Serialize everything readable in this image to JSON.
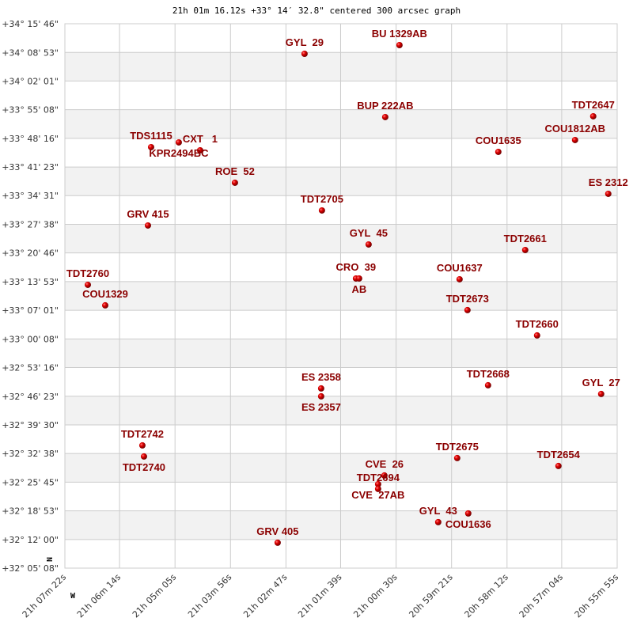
{
  "chart_data": {
    "type": "scatter",
    "title": "21h 01m 16.12s +33° 14′ 32.8\" centered 300 arcsec graph",
    "x_unit": "right ascension (hours)",
    "y_unit": "declination (degrees)",
    "xlim": [
      21.122778,
      20.931944
    ],
    "ylim": [
      32.085556,
      34.262778
    ],
    "x_ticks": [
      {
        "value": 21.122778,
        "label": "21h 07m 22s"
      },
      {
        "value": 21.103889,
        "label": "21h 06m 14s"
      },
      {
        "value": 21.084722,
        "label": "21h 05m 05s"
      },
      {
        "value": 21.065556,
        "label": "21h 03m 56s"
      },
      {
        "value": 21.046389,
        "label": "21h 02m 47s"
      },
      {
        "value": 21.0275,
        "label": "21h 01m 39s"
      },
      {
        "value": 21.008333,
        "label": "21h 00m 30s"
      },
      {
        "value": 20.989167,
        "label": "20h 59m 21s"
      },
      {
        "value": 20.97,
        "label": "20h 58m 12s"
      },
      {
        "value": 20.951111,
        "label": "20h 57m 04s"
      },
      {
        "value": 20.931944,
        "label": "20h 55m 55s"
      }
    ],
    "y_ticks": [
      {
        "value": 34.262778,
        "label": "+34° 15' 46\""
      },
      {
        "value": 34.148056,
        "label": "+34° 08' 53\""
      },
      {
        "value": 34.033611,
        "label": "+34° 02' 01\""
      },
      {
        "value": 33.918889,
        "label": "+33° 55' 08\""
      },
      {
        "value": 33.804444,
        "label": "+33° 48' 16\""
      },
      {
        "value": 33.689722,
        "label": "+33° 41' 23\""
      },
      {
        "value": 33.575278,
        "label": "+33° 34' 31\""
      },
      {
        "value": 33.460556,
        "label": "+33° 27' 38\""
      },
      {
        "value": 33.346111,
        "label": "+33° 20' 46\""
      },
      {
        "value": 33.231389,
        "label": "+33° 13' 53\""
      },
      {
        "value": 33.116944,
        "label": "+33° 07' 01\""
      },
      {
        "value": 33.002222,
        "label": "+33° 00' 08\""
      },
      {
        "value": 32.887778,
        "label": "+32° 53' 16\""
      },
      {
        "value": 32.773056,
        "label": "+32° 46' 23\""
      },
      {
        "value": 32.658333,
        "label": "+32° 39' 30\""
      },
      {
        "value": 32.543889,
        "label": "+32° 32' 38\""
      },
      {
        "value": 32.429167,
        "label": "+32° 25' 45\""
      },
      {
        "value": 32.314722,
        "label": "+32° 18' 53\""
      },
      {
        "value": 32.2,
        "label": "+32° 12' 00\""
      },
      {
        "value": 32.085556,
        "label": "+32° 05' 08\""
      }
    ],
    "compass": {
      "north": "N",
      "west": "W"
    },
    "grid": true,
    "colors": {
      "point": "#e00000",
      "label": "#8b0000",
      "grid": "#cccccc",
      "band": "#f2f2f2"
    },
    "points": [
      {
        "name": "GYL  29",
        "ra": 21.03997,
        "dec": 34.14255
      },
      {
        "name": "BU 1329AB",
        "ra": 21.00717,
        "dec": 34.17735
      },
      {
        "name": "BUP 222AB",
        "ra": 21.01209,
        "dec": 33.88943
      },
      {
        "name": "TDT2647",
        "ra": 20.94022,
        "dec": 33.89259
      },
      {
        "name": "COU1812AB",
        "ra": 20.9465,
        "dec": 33.79767
      },
      {
        "name": "COU1635",
        "ra": 20.97301,
        "dec": 33.75021
      },
      {
        "name": "ES 2312",
        "ra": 20.93502,
        "dec": 33.58252
      },
      {
        "name": "TDS1115",
        "ra": 21.09299,
        "dec": 33.7692
      },
      {
        "name": "KPR2494BC",
        "ra": 21.08342,
        "dec": 33.78818
      },
      {
        "name": "CXT   1",
        "ra": 21.07605,
        "dec": 33.75654
      },
      {
        "name": "ROE  52",
        "ra": 21.06402,
        "dec": 33.62682
      },
      {
        "name": "TDT2705",
        "ra": 21.03396,
        "dec": 33.51608
      },
      {
        "name": "GRV 415",
        "ra": 21.09408,
        "dec": 33.45596
      },
      {
        "name": "GYL  45",
        "ra": 21.01783,
        "dec": 33.38002
      },
      {
        "name": "TDT2661",
        "ra": 20.96372,
        "dec": 33.35788
      },
      {
        "name": "CRO  39",
        "ra": 21.02221,
        "dec": 33.24397
      },
      {
        "name": "AB",
        "ra": 21.02111,
        "dec": 33.24397
      },
      {
        "name": "COU1637",
        "ra": 20.9864,
        "dec": 33.24081
      },
      {
        "name": "TDT2760",
        "ra": 21.11485,
        "dec": 33.21866
      },
      {
        "name": "COU1329",
        "ra": 21.10884,
        "dec": 33.1364
      },
      {
        "name": "TDT2673",
        "ra": 20.98367,
        "dec": 33.11741
      },
      {
        "name": "TDT2660",
        "ra": 20.95962,
        "dec": 33.01616
      },
      {
        "name": "ES 2358",
        "ra": 21.03423,
        "dec": 32.80418
      },
      {
        "name": "ES 2357",
        "ra": 21.03423,
        "dec": 32.77254
      },
      {
        "name": "TDT2668",
        "ra": 20.97656,
        "dec": 32.81683
      },
      {
        "name": "GYL  27",
        "ra": 20.93748,
        "dec": 32.78203
      },
      {
        "name": "TDT2742",
        "ra": 21.096,
        "dec": 32.57637
      },
      {
        "name": "TDT2740",
        "ra": 21.09545,
        "dec": 32.53208
      },
      {
        "name": "TDT2675",
        "ra": 20.98722,
        "dec": 32.52574
      },
      {
        "name": "TDT2654",
        "ra": 20.95224,
        "dec": 32.4941
      },
      {
        "name": "CVE  26",
        "ra": 21.01237,
        "dec": 32.45614
      },
      {
        "name": "CVE  27AB",
        "ra": 21.01455,
        "dec": 32.42134
      },
      {
        "name": "TDT2694",
        "ra": 21.01455,
        "dec": 32.40235
      },
      {
        "name": "GYL  43",
        "ra": 20.99378,
        "dec": 32.26946
      },
      {
        "name": "COU1636",
        "ra": 20.9834,
        "dec": 32.30426
      },
      {
        "name": "GRV 405",
        "ra": 21.04926,
        "dec": 32.1872
      }
    ]
  }
}
